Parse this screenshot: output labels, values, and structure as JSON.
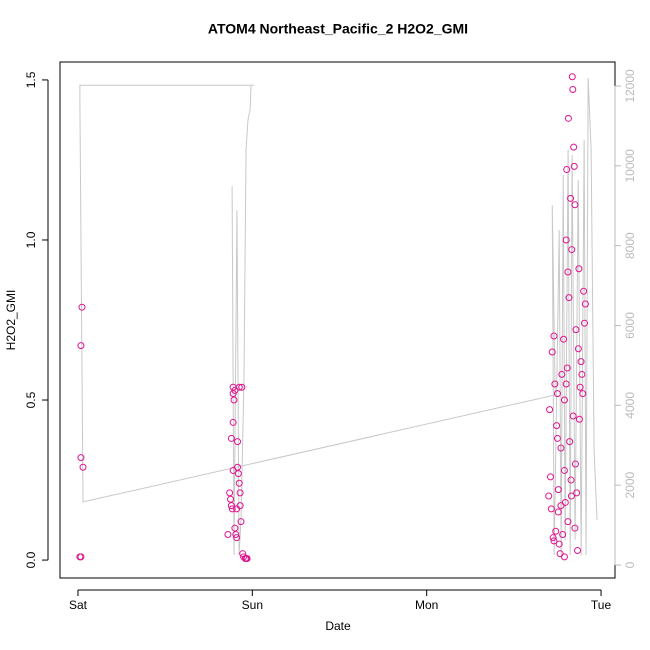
{
  "chart_data": {
    "type": "scatter",
    "title": "ATOM4 Northeast_Pacific_2 H2O2_GMI",
    "xlabel": "Date",
    "ylabel": "H2O2_GMI",
    "xlim": [
      -0.103,
      3.08
    ],
    "xticks": [
      {
        "value": 0,
        "label": "Sat"
      },
      {
        "value": 1,
        "label": "Sun"
      },
      {
        "value": 2,
        "label": "Mon"
      },
      {
        "value": 3,
        "label": "Tue"
      }
    ],
    "ylim": [
      -0.056,
      1.556
    ],
    "yticks": [
      {
        "value": 0,
        "label": "0.0"
      },
      0.5,
      {
        "value": 1,
        "label": "1.0"
      },
      1.5
    ],
    "y2lim": [
      -326,
      12601
    ],
    "y2ticks": [
      0,
      2000,
      4000,
      6000,
      8000,
      10000,
      12000
    ],
    "y2_color": "#bbbbbb",
    "series": [
      {
        "color": "#e0158f",
        "x": [
          0.011,
          0.017,
          0.023,
          0.017,
          0.017,
          0.029,
          0.89,
          0.89,
          0.895,
          0.9,
          0.88,
          0.89,
          0.87,
          0.875,
          0.88,
          0.885,
          0.89,
          0.9,
          0.905,
          0.91,
          0.915,
          0.92,
          0.925,
          0.93,
          0.935,
          0.94,
          0.945,
          0.95,
          0.96,
          0.965,
          0.97,
          0.925,
          0.915,
          0.91,
          0.93,
          0.86,
          2.7,
          2.705,
          2.71,
          2.715,
          2.72,
          2.725,
          2.73,
          2.735,
          2.74,
          2.745,
          2.75,
          2.755,
          2.76,
          2.765,
          2.77,
          2.775,
          2.78,
          2.785,
          2.79,
          2.795,
          2.8,
          2.803,
          2.806,
          2.81,
          2.813,
          2.816,
          2.82,
          2.825,
          2.828,
          2.832,
          2.835,
          2.838,
          2.84,
          2.843,
          2.846,
          2.85,
          2.853,
          2.856,
          2.86,
          2.865,
          2.87,
          2.873,
          2.876,
          2.88,
          2.885,
          2.89,
          2.895,
          2.9,
          2.905,
          2.91,
          2.75,
          2.77,
          2.79,
          2.81,
          2.83,
          2.85,
          2.79,
          2.73,
          2.755,
          2.8
        ],
        "values": [
          0.01,
          0.01,
          0.79,
          0.67,
          0.32,
          0.29,
          0.54,
          0.52,
          0.5,
          0.53,
          0.38,
          0.28,
          0.21,
          0.19,
          0.17,
          0.16,
          0.43,
          0.1,
          0.08,
          0.07,
          0.37,
          0.27,
          0.24,
          0.21,
          0.12,
          0.54,
          0.02,
          0.01,
          0.005,
          0.005,
          0.005,
          0.54,
          0.29,
          0.16,
          0.17,
          0.08,
          0.2,
          0.47,
          0.26,
          0.16,
          0.65,
          0.07,
          0.7,
          0.55,
          0.09,
          0.42,
          0.52,
          0.15,
          0.05,
          0.02,
          0.35,
          0.58,
          0.08,
          0.69,
          0.5,
          0.18,
          1.0,
          1.22,
          0.6,
          0.9,
          1.38,
          0.82,
          0.37,
          1.13,
          0.25,
          0.97,
          1.51,
          1.47,
          0.45,
          1.29,
          1.23,
          1.11,
          0.3,
          0.72,
          0.21,
          0.03,
          0.66,
          0.91,
          0.44,
          0.54,
          0.62,
          0.58,
          0.52,
          0.84,
          0.74,
          0.8,
          0.38,
          0.17,
          0.28,
          0.12,
          0.2,
          0.1,
          0.01,
          0.06,
          0.22,
          0.55
        ]
      },
      {
        "type": "line",
        "axis": "y2",
        "color": "#c8c8c8",
        "x": [
          0.884,
          0.895,
          0.912,
          0.924,
          0.935,
          0.952,
          0.964,
          0.975,
          0.987,
          0.993,
          1.01,
          0.011,
          0.011,
          0.029,
          2.737,
          2.72,
          2.731,
          2.76,
          2.771,
          2.783,
          2.794,
          2.811,
          2.823,
          2.834,
          2.851,
          2.869,
          2.886,
          2.903,
          2.914,
          2.926,
          2.943,
          2.96,
          2.977
        ],
        "values": [
          9490,
          250,
          8890,
          250,
          1130,
          4630,
          10400,
          11150,
          11400,
          12020,
          12020,
          12020,
          11650,
          1580,
          4260,
          9020,
          250,
          8390,
          250,
          9770,
          630,
          10400,
          250,
          10270,
          630,
          9640,
          250,
          10650,
          250,
          12200,
          10400,
          2880,
          1130
        ]
      }
    ]
  }
}
